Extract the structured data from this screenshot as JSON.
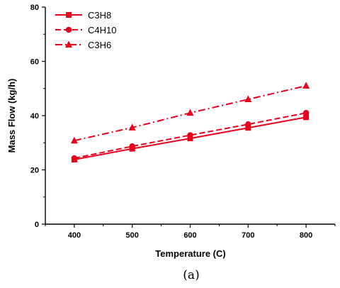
{
  "chart_data": {
    "type": "line",
    "xlabel": "Temperature (C)",
    "ylabel": "Mass Flow (kg/h)",
    "xlim": [
      350,
      850
    ],
    "ylim": [
      0,
      80
    ],
    "x": [
      400,
      500,
      600,
      700,
      800
    ],
    "xticks": [
      400,
      500,
      600,
      700,
      800
    ],
    "yticks": [
      0,
      20,
      40,
      60,
      80
    ],
    "grid": false,
    "legend_position": "top-left",
    "caption": "(a)",
    "series": [
      {
        "name": "C3H8",
        "values": [
          23.8,
          27.8,
          31.6,
          35.5,
          39.4
        ],
        "color": "#e8001c",
        "marker": "square",
        "dash": "solid"
      },
      {
        "name": "C4H10",
        "values": [
          24.3,
          28.7,
          32.8,
          36.8,
          41.0
        ],
        "color": "#e8001c",
        "marker": "circle",
        "dash": "dash"
      },
      {
        "name": "C3H6",
        "values": [
          30.8,
          35.6,
          41.0,
          46.0,
          51.0
        ],
        "color": "#e8001c",
        "marker": "triangle",
        "dash": "dashdot"
      }
    ]
  }
}
